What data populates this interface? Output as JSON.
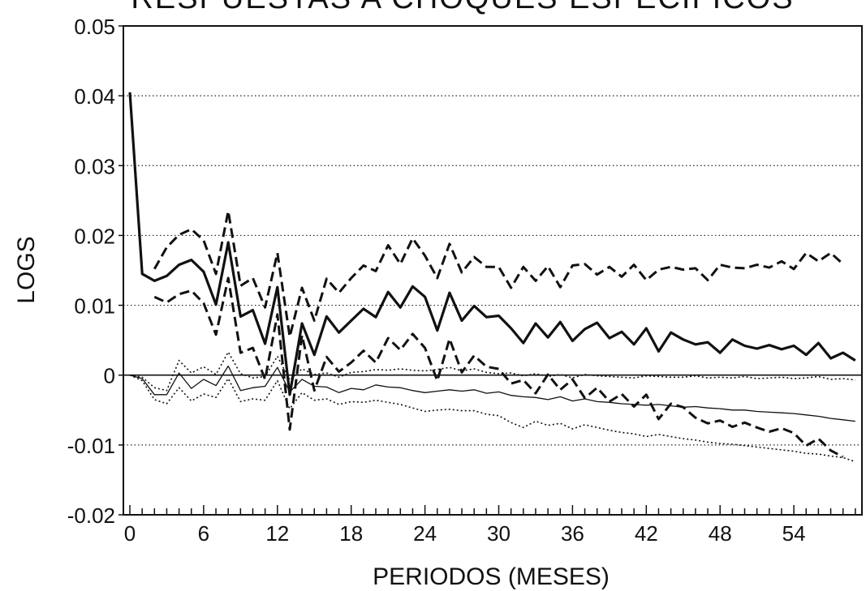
{
  "chart_data": {
    "type": "line",
    "title": "RESPUESTAS A CHOQUES ESPECIFICOS",
    "xlabel": "PERIODOS (MESES)",
    "ylabel": "LOGS",
    "xlim": [
      0,
      59
    ],
    "ylim": [
      -0.02,
      0.05
    ],
    "x_ticks": [
      0,
      6,
      12,
      18,
      24,
      30,
      36,
      42,
      48,
      54
    ],
    "y_ticks": [
      0.05,
      0.04,
      0.03,
      0.02,
      0.01,
      0,
      -0.01,
      -0.02
    ],
    "y_tick_labels": [
      "0.05",
      "0.04",
      "0.03",
      "0.02",
      "0.01",
      "0",
      "-0.01",
      "-0.02"
    ],
    "grid": "horizontal dotted",
    "series": [
      {
        "style": "thick-solid",
        "x_start": 0,
        "values": [
          0.0405,
          0.0145,
          0.0135,
          0.0142,
          0.0158,
          0.0165,
          0.0148,
          0.0101,
          0.019,
          0.0084,
          0.0093,
          0.0045,
          0.0126,
          -0.0028,
          0.0074,
          0.0029,
          0.0084,
          0.0061,
          0.0078,
          0.0095,
          0.0083,
          0.0119,
          0.0097,
          0.0127,
          0.0112,
          0.0064,
          0.0118,
          0.0078,
          0.0099,
          0.0083,
          0.0085,
          0.0067,
          0.0046,
          0.0074,
          0.0054,
          0.0076,
          0.0049,
          0.0066,
          0.0075,
          0.0053,
          0.0062,
          0.0044,
          0.0067,
          0.0034,
          0.0061,
          0.0051,
          0.0044,
          0.0047,
          0.0032,
          0.0051,
          0.0042,
          0.0038,
          0.0043,
          0.0037,
          0.0042,
          0.0029,
          0.0046,
          0.0024,
          0.0032,
          0.0021
        ]
      },
      {
        "style": "thick-dashed",
        "x_start": 2,
        "values": [
          0.0152,
          0.0183,
          0.0201,
          0.0209,
          0.0193,
          0.0145,
          0.0235,
          0.0128,
          0.0139,
          0.0097,
          0.0175,
          0.0055,
          0.0125,
          0.0078,
          0.0138,
          0.0118,
          0.0139,
          0.0157,
          0.0149,
          0.0186,
          0.0159,
          0.0196,
          0.0171,
          0.0139,
          0.0188,
          0.0147,
          0.0169,
          0.0155,
          0.0155,
          0.0125,
          0.0155,
          0.0135,
          0.0156,
          0.0126,
          0.0157,
          0.0159,
          0.0144,
          0.0155,
          0.0141,
          0.0158,
          0.0136,
          0.0151,
          0.0155,
          0.0151,
          0.0153,
          0.0136,
          0.0158,
          0.0154,
          0.0153,
          0.0158,
          0.0154,
          0.0163,
          0.0152,
          0.0175,
          0.0163,
          0.0175,
          0.0159
        ]
      },
      {
        "style": "thick-dashed",
        "x_start": 2,
        "values": [
          0.0112,
          0.0104,
          0.0116,
          0.0121,
          0.0103,
          0.0058,
          0.0139,
          0.0032,
          0.0039,
          -0.0006,
          0.0087,
          -0.0078,
          0.0057,
          -0.0022,
          0.0026,
          0.0005,
          0.0018,
          0.0035,
          0.0018,
          0.0053,
          0.0036,
          0.0059,
          0.0039,
          -0.0008,
          0.0052,
          0.0004,
          0.0028,
          0.0012,
          0.0009,
          -0.0012,
          -0.0007,
          -0.0026,
          0.0001,
          -0.0021,
          -0.0006,
          -0.0033,
          -0.0018,
          -0.0038,
          -0.0027,
          -0.0045,
          -0.0028,
          -0.0063,
          -0.0041,
          -0.0046,
          -0.0061,
          -0.0069,
          -0.0065,
          -0.0074,
          -0.0068,
          -0.0075,
          -0.0081,
          -0.0076,
          -0.0083,
          -0.0101,
          -0.0091,
          -0.0108,
          -0.0117
        ]
      },
      {
        "style": "thin-solid",
        "x_start": 0,
        "values": [
          0,
          -0.0005,
          -0.0028,
          -0.0028,
          0.0003,
          -0.0019,
          -0.0006,
          -0.0015,
          0.0013,
          -0.0022,
          -0.0018,
          -0.0016,
          0.0011,
          -0.0024,
          -0.0006,
          -0.0016,
          -0.0017,
          -0.0025,
          -0.0019,
          -0.0021,
          -0.0014,
          -0.0017,
          -0.0018,
          -0.0022,
          -0.0025,
          -0.0023,
          -0.0021,
          -0.0023,
          -0.0021,
          -0.0026,
          -0.0024,
          -0.0029,
          -0.0031,
          -0.0032,
          -0.0035,
          -0.0031,
          -0.0037,
          -0.0034,
          -0.0038,
          -0.0039,
          -0.0041,
          -0.0042,
          -0.0043,
          -0.0042,
          -0.0044,
          -0.0046,
          -0.0045,
          -0.0047,
          -0.0048,
          -0.005,
          -0.005,
          -0.0052,
          -0.0053,
          -0.0054,
          -0.0055,
          -0.0057,
          -0.0059,
          -0.0062,
          -0.0064,
          -0.0066
        ]
      },
      {
        "style": "thin-dotted",
        "x_start": 0,
        "values": [
          0,
          -0.0003,
          -0.0018,
          -0.0022,
          0.0021,
          0.0003,
          0.0012,
          0.0001,
          0.0033,
          0.0002,
          -0.0004,
          -0.0002,
          0.0027,
          -0.0007,
          0.0009,
          0.0001,
          0.0003,
          -0.0003,
          0.0004,
          0.0005,
          0.0008,
          0.0007,
          0.0009,
          0.0007,
          0.0006,
          0.0008,
          0.0011,
          0.0006,
          0.0009,
          0.0004,
          0.0002,
          0.0003,
          -0.0001,
          0.0002,
          -0.0002,
          0.0001,
          -0.0004,
          0.0001,
          -0.0001,
          -0.0002,
          -0.0003,
          -0.0004,
          -0.0001,
          -0.0002,
          -0.0003,
          -0.0003,
          -0.0001,
          -0.0004,
          -0.0003,
          -0.0004,
          -0.0002,
          -0.0005,
          -0.0004,
          -0.0003,
          -0.0005,
          -0.0004,
          -0.0002,
          -0.0006,
          -0.0005,
          -0.0007
        ]
      },
      {
        "style": "thin-dotted",
        "x_start": 0,
        "values": [
          0,
          -0.0008,
          -0.0035,
          -0.0041,
          -0.0018,
          -0.0037,
          -0.0027,
          -0.0032,
          -0.0005,
          -0.0038,
          -0.0034,
          -0.0036,
          -0.0008,
          -0.0048,
          -0.0025,
          -0.0036,
          -0.0034,
          -0.0042,
          -0.0038,
          -0.0039,
          -0.0036,
          -0.0039,
          -0.0042,
          -0.0047,
          -0.0052,
          -0.005,
          -0.0049,
          -0.0051,
          -0.0051,
          -0.0056,
          -0.0058,
          -0.0068,
          -0.0075,
          -0.0066,
          -0.0072,
          -0.0069,
          -0.0077,
          -0.0071,
          -0.0075,
          -0.0079,
          -0.0082,
          -0.0084,
          -0.0088,
          -0.0085,
          -0.0088,
          -0.0091,
          -0.0093,
          -0.0096,
          -0.0098,
          -0.0099,
          -0.0101,
          -0.0103,
          -0.0105,
          -0.0107,
          -0.0109,
          -0.0112,
          -0.0113,
          -0.0116,
          -0.0118,
          -0.0124
        ]
      }
    ]
  }
}
